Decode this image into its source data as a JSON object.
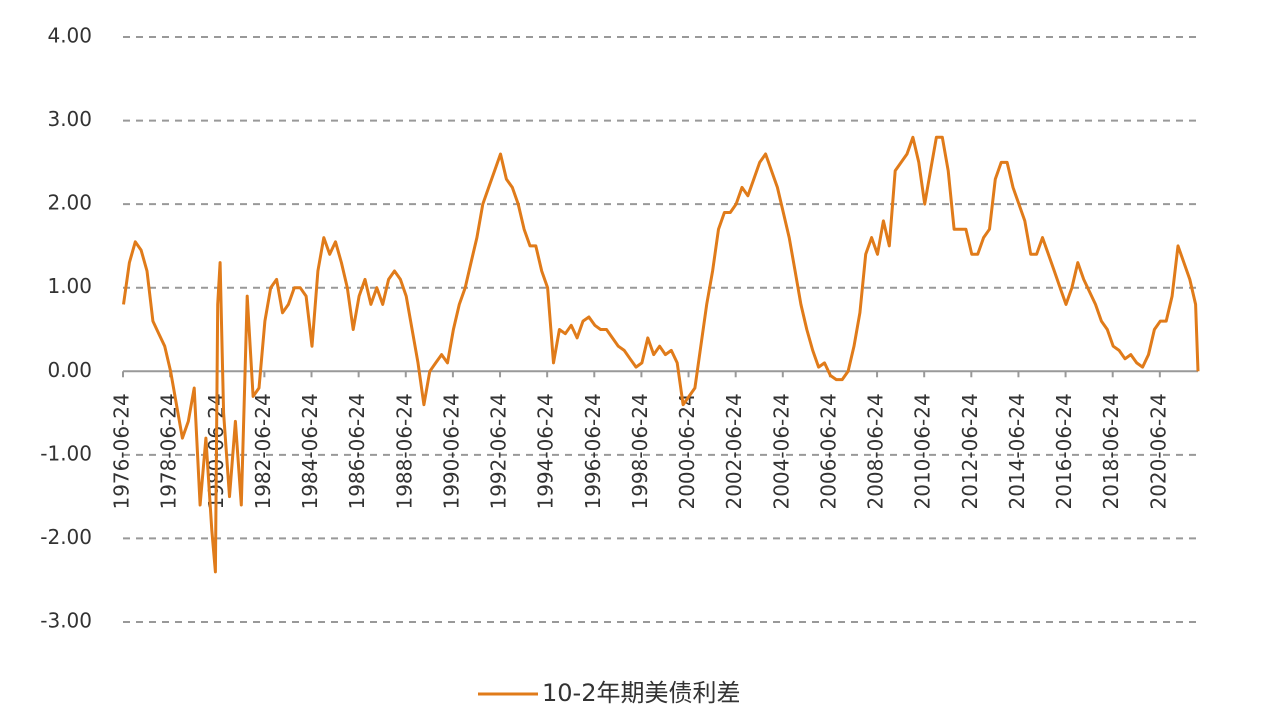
{
  "chart_data": {
    "type": "line",
    "x": [
      1976.5,
      1976.75,
      1977.0,
      1977.25,
      1977.5,
      1977.75,
      1978.0,
      1978.25,
      1978.5,
      1978.75,
      1979.0,
      1979.25,
      1979.5,
      1979.75,
      1980.0,
      1980.25,
      1980.4,
      1980.5,
      1980.6,
      1980.75,
      1981.0,
      1981.25,
      1981.5,
      1981.75,
      1982.0,
      1982.25,
      1982.5,
      1982.75,
      1983.0,
      1983.25,
      1983.5,
      1983.75,
      1984.0,
      1984.25,
      1984.5,
      1984.75,
      1985.0,
      1985.25,
      1985.5,
      1985.75,
      1986.0,
      1986.25,
      1986.5,
      1986.75,
      1987.0,
      1987.25,
      1987.5,
      1987.75,
      1988.0,
      1988.25,
      1988.5,
      1988.75,
      1989.0,
      1989.25,
      1989.5,
      1989.75,
      1990.0,
      1990.25,
      1990.5,
      1990.75,
      1991.0,
      1991.25,
      1991.5,
      1991.75,
      1992.0,
      1992.25,
      1992.5,
      1992.75,
      1993.0,
      1993.25,
      1993.5,
      1993.75,
      1994.0,
      1994.25,
      1994.5,
      1994.75,
      1995.0,
      1995.25,
      1995.5,
      1995.75,
      1996.0,
      1996.25,
      1996.5,
      1996.75,
      1997.0,
      1997.25,
      1997.5,
      1997.75,
      1998.0,
      1998.25,
      1998.5,
      1998.75,
      1999.0,
      1999.25,
      1999.5,
      1999.75,
      2000.0,
      2000.25,
      2000.5,
      2000.75,
      2001.0,
      2001.25,
      2001.5,
      2001.75,
      2002.0,
      2002.25,
      2002.5,
      2002.75,
      2003.0,
      2003.25,
      2003.5,
      2003.75,
      2004.0,
      2004.25,
      2004.5,
      2004.75,
      2005.0,
      2005.25,
      2005.5,
      2005.75,
      2006.0,
      2006.25,
      2006.5,
      2006.75,
      2007.0,
      2007.25,
      2007.5,
      2007.75,
      2008.0,
      2008.25,
      2008.5,
      2008.75,
      2009.0,
      2009.25,
      2009.5,
      2009.75,
      2010.0,
      2010.25,
      2010.5,
      2010.75,
      2011.0,
      2011.25,
      2011.5,
      2011.75,
      2012.0,
      2012.25,
      2012.5,
      2012.75,
      2013.0,
      2013.25,
      2013.5,
      2013.75,
      2014.0,
      2014.25,
      2014.5,
      2014.75,
      2015.0,
      2015.25,
      2015.5,
      2015.75,
      2016.0,
      2016.25,
      2016.5,
      2016.75,
      2017.0,
      2017.25,
      2017.5,
      2017.75,
      2018.0,
      2018.25,
      2018.5,
      2018.75,
      2019.0,
      2019.25,
      2019.5,
      2019.75,
      2020.0,
      2020.25,
      2020.5,
      2020.75,
      2021.0,
      2021.25,
      2021.5,
      2021.75,
      2022.0,
      2022.1
    ],
    "series": [
      {
        "name": "10-2年期美债利差",
        "color": "#e07b1a",
        "values": [
          0.8,
          1.3,
          1.55,
          1.45,
          1.2,
          0.6,
          0.45,
          0.3,
          0.0,
          -0.4,
          -0.8,
          -0.6,
          -0.2,
          -1.6,
          -0.8,
          -1.9,
          -2.4,
          0.8,
          1.3,
          -0.5,
          -1.5,
          -0.6,
          -1.6,
          0.9,
          -0.3,
          -0.2,
          0.6,
          1.0,
          1.1,
          0.7,
          0.8,
          1.0,
          1.0,
          0.9,
          0.3,
          1.2,
          1.6,
          1.4,
          1.55,
          1.3,
          1.0,
          0.5,
          0.9,
          1.1,
          0.8,
          1.0,
          0.8,
          1.1,
          1.2,
          1.1,
          0.9,
          0.5,
          0.1,
          -0.4,
          0.0,
          0.1,
          0.2,
          0.1,
          0.5,
          0.8,
          1.0,
          1.3,
          1.6,
          2.0,
          2.2,
          2.4,
          2.6,
          2.3,
          2.2,
          2.0,
          1.7,
          1.5,
          1.5,
          1.2,
          1.0,
          0.1,
          0.5,
          0.45,
          0.55,
          0.4,
          0.6,
          0.65,
          0.55,
          0.5,
          0.5,
          0.4,
          0.3,
          0.25,
          0.15,
          0.05,
          0.1,
          0.4,
          0.2,
          0.3,
          0.2,
          0.25,
          0.1,
          -0.4,
          -0.3,
          -0.2,
          0.3,
          0.8,
          1.2,
          1.7,
          1.9,
          1.9,
          2.0,
          2.2,
          2.1,
          2.3,
          2.5,
          2.6,
          2.4,
          2.2,
          1.9,
          1.6,
          1.2,
          0.8,
          0.5,
          0.25,
          0.05,
          0.1,
          -0.05,
          -0.1,
          -0.1,
          0.0,
          0.3,
          0.7,
          1.4,
          1.6,
          1.4,
          1.8,
          1.5,
          2.4,
          2.5,
          2.6,
          2.8,
          2.5,
          2.0,
          2.4,
          2.8,
          2.8,
          2.4,
          1.7,
          1.7,
          1.7,
          1.4,
          1.4,
          1.6,
          1.7,
          2.3,
          2.5,
          2.5,
          2.2,
          2.0,
          1.8,
          1.4,
          1.4,
          1.6,
          1.4,
          1.2,
          1.0,
          0.8,
          1.0,
          1.3,
          1.1,
          0.95,
          0.8,
          0.6,
          0.5,
          0.3,
          0.25,
          0.15,
          0.2,
          0.1,
          0.05,
          0.2,
          0.5,
          0.6,
          0.6,
          0.9,
          1.5,
          1.3,
          1.1,
          0.8,
          0.0
        ]
      }
    ],
    "xlim": [
      1976.48,
      2022.1
    ],
    "xticks": [
      {
        "value": 1976.48,
        "label": "1976-06-24"
      },
      {
        "value": 1978.48,
        "label": "1978-06-24"
      },
      {
        "value": 1980.48,
        "label": "1980-06-24"
      },
      {
        "value": 1982.48,
        "label": "1982-06-24"
      },
      {
        "value": 1984.48,
        "label": "1984-06-24"
      },
      {
        "value": 1986.48,
        "label": "1986-06-24"
      },
      {
        "value": 1988.48,
        "label": "1988-06-24"
      },
      {
        "value": 1990.48,
        "label": "1990-06-24"
      },
      {
        "value": 1992.48,
        "label": "1992-06-24"
      },
      {
        "value": 1994.48,
        "label": "1994-06-24"
      },
      {
        "value": 1996.48,
        "label": "1996-06-24"
      },
      {
        "value": 1998.48,
        "label": "1998-06-24"
      },
      {
        "value": 2000.48,
        "label": "2000-06-24"
      },
      {
        "value": 2002.48,
        "label": "2002-06-24"
      },
      {
        "value": 2004.48,
        "label": "2004-06-24"
      },
      {
        "value": 2006.48,
        "label": "2006-06-24"
      },
      {
        "value": 2008.48,
        "label": "2008-06-24"
      },
      {
        "value": 2010.48,
        "label": "2010-06-24"
      },
      {
        "value": 2012.48,
        "label": "2012-06-24"
      },
      {
        "value": 2014.48,
        "label": "2014-06-24"
      },
      {
        "value": 2016.48,
        "label": "2016-06-24"
      },
      {
        "value": 2018.48,
        "label": "2018-06-24"
      },
      {
        "value": 2020.48,
        "label": "2020-06-24"
      }
    ],
    "ylim": [
      -3,
      4
    ],
    "yticks": [
      {
        "value": -3,
        "label": "-3.00"
      },
      {
        "value": -2,
        "label": "-2.00"
      },
      {
        "value": -1,
        "label": "-1.00"
      },
      {
        "value": 0,
        "label": "0.00"
      },
      {
        "value": 1,
        "label": "1.00"
      },
      {
        "value": 2,
        "label": "2.00"
      },
      {
        "value": 3,
        "label": "3.00"
      },
      {
        "value": 4,
        "label": "4.00"
      }
    ],
    "grid": true
  }
}
